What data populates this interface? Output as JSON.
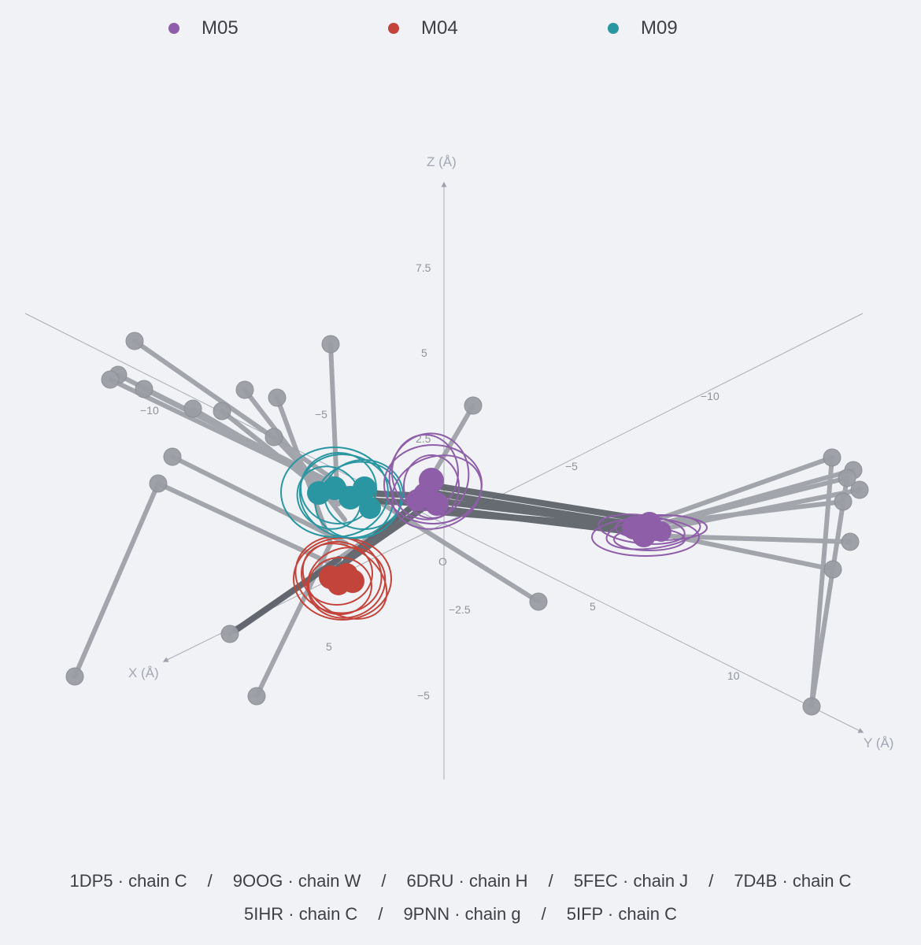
{
  "legend": [
    {
      "label": "M05",
      "color": "#8e5ea8"
    },
    {
      "label": "M04",
      "color": "#c2443a"
    },
    {
      "label": "M09",
      "color": "#2a96a2"
    }
  ],
  "axes": {
    "x": {
      "title": "X (Å)",
      "ticks": [
        "−10",
        "−5",
        "5"
      ]
    },
    "y": {
      "title": "Y (Å)",
      "ticks": [
        "−10",
        "−5",
        "5",
        "10"
      ]
    },
    "z": {
      "title": "Z (Å)",
      "ticks": [
        "7.5",
        "5",
        "2.5",
        "−2.5",
        "−5"
      ]
    },
    "origin": "O"
  },
  "caption": {
    "rows": [
      [
        "1DP5 · chain C",
        "9OOG · chain W",
        "6DRU · chain H",
        "5FEC · chain J",
        "7D4B · chain C"
      ],
      [
        "5IHR · chain C",
        "9PNN · chain g",
        "5IFP · chain C"
      ]
    ],
    "separator": "/"
  },
  "chart_data": {
    "type": "scatter",
    "projection": "3d",
    "xlabel": "X (Å)",
    "ylabel": "Y (Å)",
    "zlabel": "Z (Å)",
    "xlim": [
      -12,
      7
    ],
    "ylim": [
      -12,
      12
    ],
    "zlim": [
      -7,
      10
    ],
    "series": [
      {
        "name": "M05",
        "color": "#8e5ea8",
        "centroid": [
          -1,
          0.5,
          1.3
        ],
        "notes": "metal cluster near origin"
      },
      {
        "name": "M05",
        "color": "#8e5ea8",
        "centroid": [
          3,
          9,
          0.8
        ],
        "notes": "metal cluster toward +Y"
      },
      {
        "name": "M04",
        "color": "#c2443a",
        "centroid": [
          5,
          -1,
          0.2
        ]
      },
      {
        "name": "M09",
        "color": "#2a96a2",
        "centroid": [
          -2,
          -4,
          1.5
        ]
      }
    ],
    "ligand_atoms_color": "#9a9da3"
  }
}
